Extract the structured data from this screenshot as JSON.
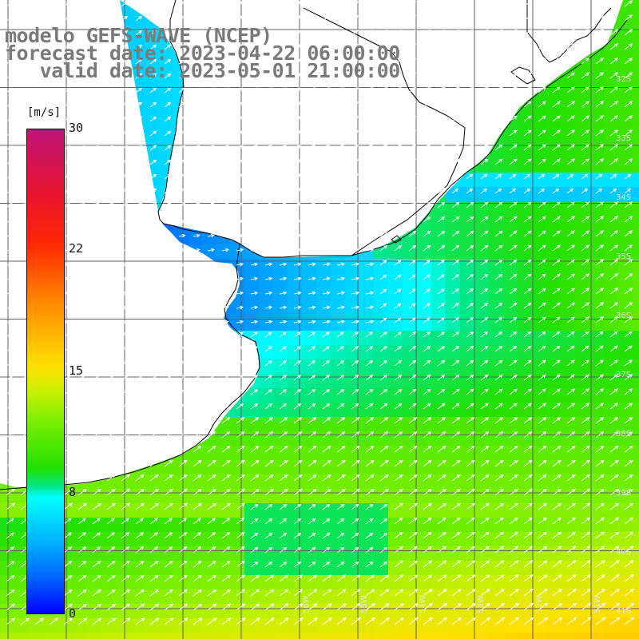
{
  "title": {
    "line1": "modelo GEFS-WAVE (NCEP)",
    "line2": "forecast date: 2023-04-22 06:00:00",
    "line3": "   valid date: 2023-05-01 21:00:00"
  },
  "colorbar": {
    "units": "[m/s]",
    "ticks": [
      "30",
      "22",
      "15",
      "8",
      "0"
    ]
  },
  "map_labels": {
    "latitudes": [
      "32S",
      "33S",
      "34S",
      "35S",
      "36S",
      "37S",
      "38S",
      "39S",
      "40S",
      "41S"
    ],
    "longitudes": [
      "56W",
      "55W",
      "54W",
      "53W",
      "52W",
      "51W"
    ]
  },
  "colors": {
    "land": "#ffffff",
    "grid": "#606060",
    "coast": "#000000",
    "arrows": "#ffffff"
  }
}
